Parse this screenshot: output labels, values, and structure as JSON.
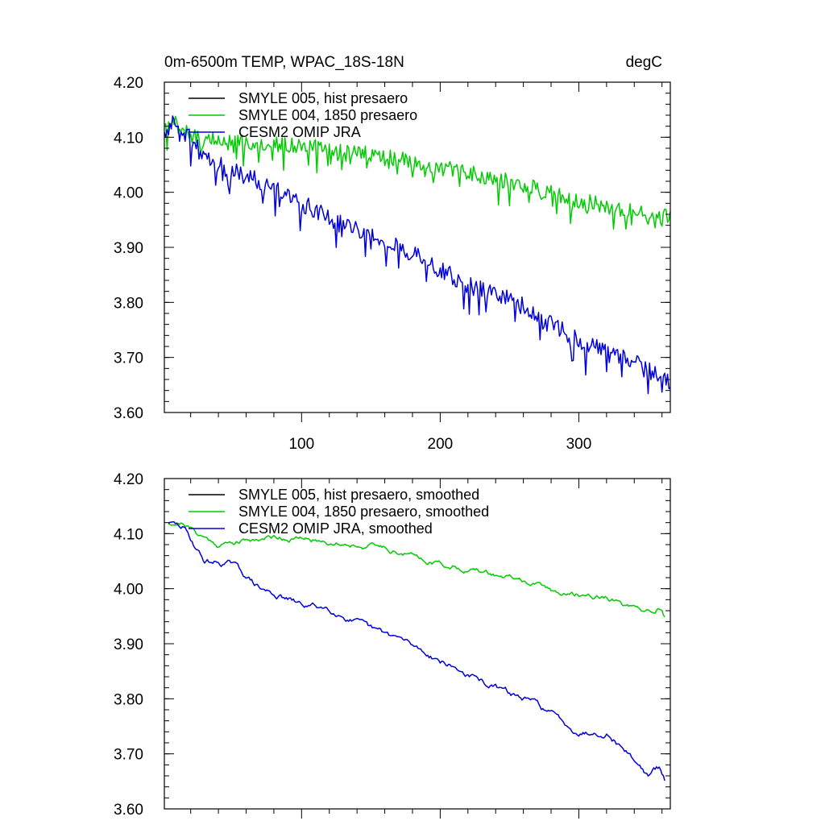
{
  "chart_data": [
    {
      "type": "line",
      "title": "0m-6500m TEMP, WPAC_18S-18N",
      "units": "degC",
      "xlabel": "",
      "ylabel": "",
      "xlim": [
        1,
        366
      ],
      "ylim": [
        3.6,
        4.2
      ],
      "x_ticks": [
        100,
        200,
        300
      ],
      "x_tick_labels": [
        "100",
        "200",
        "300"
      ],
      "y_ticks": [
        3.6,
        3.7,
        3.8,
        3.9,
        4.0,
        4.1,
        4.2
      ],
      "y_tick_labels": [
        "3.60",
        "3.70",
        "3.80",
        "3.90",
        "4.00",
        "4.10",
        "4.20"
      ],
      "legend_position": "top-left",
      "smoothed": false,
      "series": [
        {
          "name": "SMYLE 005, hist presaero",
          "color": "#000000",
          "trend": [
            [
              1,
              4.11
            ],
            [
              366,
              4.11
            ]
          ],
          "noise": 0.0,
          "visible": false
        },
        {
          "name": "SMYLE 004, 1850 presaero",
          "color": "#00cc00",
          "trend": [
            [
              1,
              4.11
            ],
            [
              10,
              4.13
            ],
            [
              20,
              4.1
            ],
            [
              60,
              4.09
            ],
            [
              100,
              4.085
            ],
            [
              150,
              4.07
            ],
            [
              200,
              4.045
            ],
            [
              250,
              4.02
            ],
            [
              300,
              3.985
            ],
            [
              340,
              3.965
            ],
            [
              366,
              3.955
            ]
          ],
          "noise": 0.018,
          "seed": 7
        },
        {
          "name": "CESM2 OMIP JRA",
          "color": "#0000dd",
          "trend": [
            [
              1,
              4.11
            ],
            [
              10,
              4.13
            ],
            [
              20,
              4.1
            ],
            [
              30,
              4.06
            ],
            [
              50,
              4.04
            ],
            [
              70,
              4.02
            ],
            [
              100,
              3.98
            ],
            [
              150,
              3.92
            ],
            [
              180,
              3.89
            ],
            [
              220,
              3.83
            ],
            [
              250,
              3.81
            ],
            [
              300,
              3.73
            ],
            [
              340,
              3.69
            ],
            [
              366,
              3.655
            ]
          ],
          "noise": 0.02,
          "seed": 13
        }
      ]
    },
    {
      "type": "line",
      "title": "",
      "units": "",
      "xlabel": "",
      "ylabel": "",
      "xlim": [
        1,
        366
      ],
      "ylim": [
        3.6,
        4.2
      ],
      "x_ticks": [
        100,
        200,
        300
      ],
      "x_tick_labels": [],
      "y_ticks": [
        3.6,
        3.7,
        3.8,
        3.9,
        4.0,
        4.1,
        4.2
      ],
      "y_tick_labels": [
        "3.60",
        "3.70",
        "3.80",
        "3.90",
        "4.00",
        "4.10",
        "4.20"
      ],
      "legend_position": "top-left",
      "smoothed": true,
      "series": [
        {
          "name": "SMYLE 005, hist presaero, smoothed",
          "color": "#000000",
          "trend": [
            [
              1,
              4.12
            ],
            [
              366,
              4.12
            ]
          ],
          "noise": 0.0,
          "visible": false
        },
        {
          "name": "SMYLE 004, 1850 presaero, smoothed",
          "color": "#00cc00",
          "trend": [
            [
              4,
              4.12
            ],
            [
              15,
              4.12
            ],
            [
              25,
              4.1
            ],
            [
              40,
              4.08
            ],
            [
              80,
              4.095
            ],
            [
              120,
              4.085
            ],
            [
              160,
              4.075
            ],
            [
              200,
              4.045
            ],
            [
              250,
              4.02
            ],
            [
              290,
              3.99
            ],
            [
              320,
              3.985
            ],
            [
              345,
              3.955
            ],
            [
              357,
              3.965
            ],
            [
              362,
              3.945
            ]
          ],
          "noise": 0.012,
          "seed": 21
        },
        {
          "name": "CESM2 OMIP JRA, smoothed",
          "color": "#0000dd",
          "trend": [
            [
              4,
              4.12
            ],
            [
              15,
              4.11
            ],
            [
              30,
              4.05
            ],
            [
              50,
              4.045
            ],
            [
              70,
              4.0
            ],
            [
              100,
              3.97
            ],
            [
              120,
              3.965
            ],
            [
              150,
              3.925
            ],
            [
              170,
              3.91
            ],
            [
              200,
              3.87
            ],
            [
              230,
              3.83
            ],
            [
              250,
              3.81
            ],
            [
              270,
              3.79
            ],
            [
              300,
              3.74
            ],
            [
              320,
              3.74
            ],
            [
              340,
              3.69
            ],
            [
              350,
              3.66
            ],
            [
              358,
              3.675
            ],
            [
              362,
              3.65
            ]
          ],
          "noise": 0.014,
          "seed": 29
        }
      ]
    }
  ]
}
